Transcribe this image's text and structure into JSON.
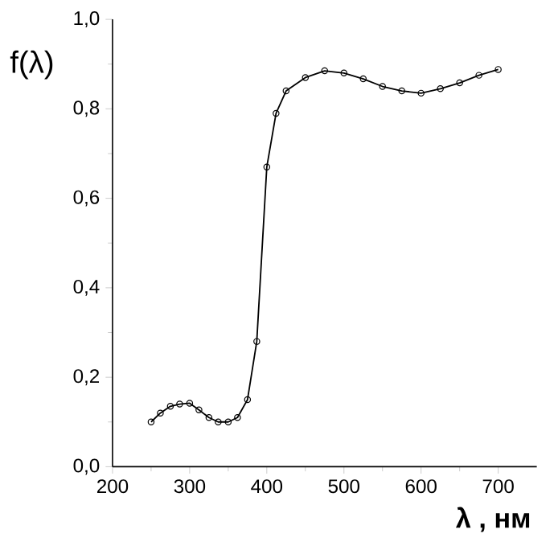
{
  "chart_data": {
    "type": "line",
    "xlabel": "λ , нм",
    "ylabel": "f(λ)",
    "x": [
      250,
      262,
      275,
      287,
      300,
      312,
      325,
      337,
      350,
      362,
      375,
      387,
      400,
      412,
      425,
      450,
      475,
      500,
      525,
      550,
      575,
      600,
      625,
      650,
      675,
      700
    ],
    "values": [
      0.1,
      0.12,
      0.135,
      0.14,
      0.142,
      0.127,
      0.11,
      0.1,
      0.1,
      0.11,
      0.15,
      0.28,
      0.67,
      0.79,
      0.84,
      0.87,
      0.885,
      0.88,
      0.867,
      0.85,
      0.84,
      0.835,
      0.845,
      0.858,
      0.875,
      0.888
    ],
    "color": "#000000",
    "marker": "circle",
    "line_style": "solid",
    "xlim": [
      200,
      750
    ],
    "xticks": [
      200,
      300,
      400,
      500,
      600,
      700
    ],
    "ylim": [
      0,
      1
    ],
    "yticks": [
      {
        "value": 0,
        "label": "0,0"
      },
      {
        "value": 0.2,
        "label": "0,2"
      },
      {
        "value": 0.4,
        "label": "0,4"
      },
      {
        "value": 0.6,
        "label": "0,6"
      },
      {
        "value": 0.8,
        "label": "0,8"
      },
      {
        "value": 1.0,
        "label": "1,0"
      }
    ]
  }
}
